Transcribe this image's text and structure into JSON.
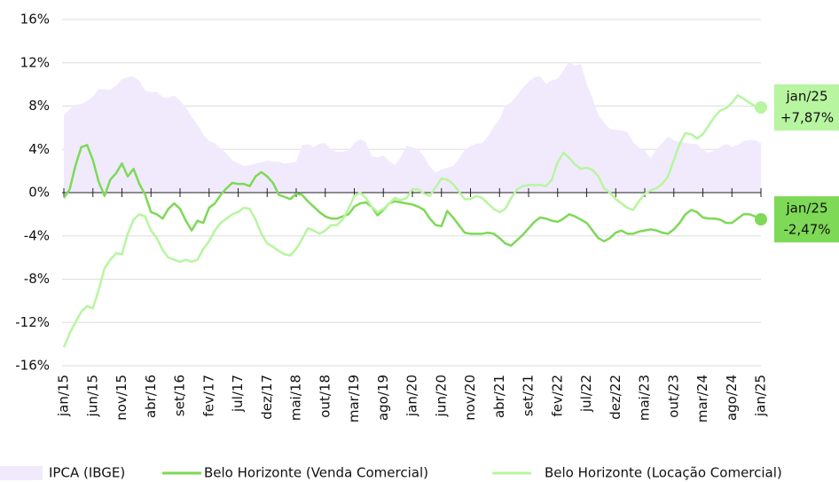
{
  "chart_data": {
    "type": "line",
    "categories": [
      "jan/15",
      null,
      null,
      null,
      null,
      "jun/15",
      null,
      null,
      null,
      null,
      "nov/15",
      null,
      null,
      null,
      null,
      "abr/16",
      null,
      null,
      null,
      null,
      "set/16",
      null,
      null,
      null,
      null,
      "fev/17",
      null,
      null,
      null,
      null,
      "jul/17",
      null,
      null,
      null,
      null,
      "dez/17",
      null,
      null,
      null,
      null,
      "mai/18",
      null,
      null,
      null,
      null,
      "out/18",
      null,
      null,
      null,
      null,
      "mar/19",
      null,
      null,
      null,
      null,
      "ago/19",
      null,
      null,
      null,
      null,
      "jan/20",
      null,
      null,
      null,
      null,
      "jun/20",
      null,
      null,
      null,
      null,
      "nov/20",
      null,
      null,
      null,
      null,
      "abr/21",
      null,
      null,
      null,
      null,
      "set/21",
      null,
      null,
      null,
      null,
      "fev/22",
      null,
      null,
      null,
      null,
      "jul/22",
      null,
      null,
      null,
      null,
      "dez/22",
      null,
      null,
      null,
      null,
      "mai/23",
      null,
      null,
      null,
      null,
      "out/23",
      null,
      null,
      null,
      null,
      "mar/24",
      null,
      null,
      null,
      null,
      "ago/24",
      null,
      null,
      null,
      null,
      "jan/25"
    ],
    "series": [
      {
        "name": "IPCA (IBGE)",
        "kind": "area",
        "color": "#f0eafc",
        "values": [
          7.14,
          7.7,
          8.13,
          8.17,
          8.47,
          8.89,
          9.56,
          9.53,
          9.49,
          9.93,
          10.48,
          10.67,
          10.71,
          10.36,
          9.39,
          9.28,
          9.32,
          8.84,
          8.74,
          8.97,
          8.48,
          7.87,
          6.99,
          6.29,
          5.35,
          4.76,
          4.57,
          4.08,
          3.6,
          3.0,
          2.71,
          2.46,
          2.54,
          2.7,
          2.8,
          2.95,
          2.86,
          2.84,
          2.68,
          2.76,
          2.86,
          4.39,
          4.48,
          4.19,
          4.53,
          4.56,
          4.05,
          3.75,
          3.78,
          3.89,
          4.58,
          4.94,
          4.66,
          3.37,
          3.22,
          3.43,
          2.89,
          2.54,
          3.27,
          4.31,
          4.19,
          4.01,
          3.3,
          2.4,
          1.88,
          2.13,
          2.31,
          2.44,
          3.14,
          3.92,
          4.31,
          4.52,
          4.56,
          5.2,
          6.1,
          6.76,
          8.06,
          8.35,
          8.99,
          9.68,
          10.25,
          10.67,
          10.74,
          10.06,
          10.38,
          10.54,
          11.3,
          12.13,
          11.73,
          11.89,
          10.07,
          8.73,
          7.17,
          6.47,
          5.9,
          5.79,
          5.77,
          5.6,
          4.65,
          4.18,
          3.94,
          3.16,
          3.99,
          4.61,
          5.19,
          4.82,
          4.68,
          4.62,
          4.51,
          4.5,
          3.93,
          3.69,
          3.93,
          4.23,
          4.5,
          4.24,
          4.42,
          4.76,
          4.87,
          4.83,
          4.56
        ]
      },
      {
        "name": "Belo Horizonte (Venda Comercial)",
        "kind": "line",
        "color": "#7ed957",
        "last_label": "-2,47%",
        "values": [
          -0.5,
          0.3,
          2.5,
          4.2,
          4.4,
          3.0,
          1.0,
          -0.3,
          1.2,
          1.8,
          2.7,
          1.5,
          2.2,
          0.8,
          -0.2,
          -1.8,
          -2.0,
          -2.4,
          -1.5,
          -1.0,
          -1.5,
          -2.6,
          -3.5,
          -2.6,
          -2.8,
          -1.4,
          -1.0,
          -0.2,
          0.4,
          0.9,
          0.8,
          0.8,
          0.6,
          1.5,
          1.9,
          1.5,
          0.9,
          -0.2,
          -0.4,
          -0.6,
          -0.1,
          -0.2,
          -0.8,
          -1.3,
          -1.8,
          -2.2,
          -2.4,
          -2.4,
          -2.2,
          -2.0,
          -1.3,
          -1.0,
          -0.9,
          -1.3,
          -2.1,
          -1.6,
          -1.0,
          -0.8,
          -0.9,
          -1.0,
          -1.1,
          -1.3,
          -1.6,
          -2.4,
          -3.0,
          -3.1,
          -1.7,
          -2.3,
          -3.0,
          -3.7,
          -3.8,
          -3.8,
          -3.8,
          -3.7,
          -3.8,
          -4.2,
          -4.7,
          -4.9,
          -4.4,
          -3.9,
          -3.3,
          -2.7,
          -2.3,
          -2.4,
          -2.6,
          -2.7,
          -2.4,
          -2.0,
          -2.2,
          -2.5,
          -2.8,
          -3.5,
          -4.2,
          -4.5,
          -4.2,
          -3.7,
          -3.5,
          -3.8,
          -3.8,
          -3.6,
          -3.5,
          -3.4,
          -3.5,
          -3.7,
          -3.8,
          -3.4,
          -2.8,
          -2.0,
          -1.6,
          -1.8,
          -2.3,
          -2.4,
          -2.4,
          -2.5,
          -2.8,
          -2.8,
          -2.4,
          -2.0,
          -2.0,
          -2.2,
          -2.47
        ]
      },
      {
        "name": "Belo Horizonte (Locação Comercial)",
        "kind": "line",
        "color": "#b8f5a0",
        "last_label": "+7,87%",
        "values": [
          -14.3,
          -13.0,
          -12.0,
          -11.0,
          -10.5,
          -10.7,
          -9.0,
          -7.0,
          -6.2,
          -5.6,
          -5.7,
          -3.8,
          -2.5,
          -2.0,
          -2.2,
          -3.5,
          -4.2,
          -5.3,
          -6.0,
          -6.2,
          -6.4,
          -6.2,
          -6.4,
          -6.2,
          -5.2,
          -4.5,
          -3.5,
          -2.8,
          -2.4,
          -2.0,
          -1.8,
          -1.4,
          -1.5,
          -2.5,
          -3.8,
          -4.7,
          -5.0,
          -5.4,
          -5.7,
          -5.8,
          -5.2,
          -4.3,
          -3.3,
          -3.5,
          -3.8,
          -3.5,
          -3.0,
          -3.0,
          -2.5,
          -1.5,
          -0.3,
          0.0,
          -0.5,
          -1.3,
          -1.8,
          -1.5,
          -1.0,
          -0.5,
          -0.7,
          -0.5,
          0.3,
          0.3,
          -0.1,
          -0.3,
          0.5,
          1.3,
          1.2,
          0.8,
          0.1,
          -0.6,
          -0.6,
          -0.3,
          -0.5,
          -1.0,
          -1.5,
          -1.8,
          -1.5,
          -0.5,
          0.3,
          0.6,
          0.7,
          0.7,
          0.7,
          0.6,
          1.2,
          2.8,
          3.7,
          3.2,
          2.6,
          2.2,
          2.3,
          2.1,
          1.5,
          0.4,
          0.0,
          -0.6,
          -1.0,
          -1.4,
          -1.6,
          -0.8,
          -0.1,
          0.2,
          0.4,
          0.8,
          1.5,
          3.0,
          4.5,
          5.5,
          5.4,
          5.0,
          5.4,
          6.2,
          7.0,
          7.6,
          7.8,
          8.3,
          9.0,
          8.7,
          8.3,
          8.0,
          7.87
        ]
      }
    ],
    "ylim": [
      -16,
      16
    ],
    "yticks": [
      {
        "value": -16,
        "label": "-16%"
      },
      {
        "value": -12,
        "label": "-12%"
      },
      {
        "value": -8,
        "label": "-8%"
      },
      {
        "value": -4,
        "label": "-4%"
      },
      {
        "value": 0,
        "label": "0%"
      },
      {
        "value": 4,
        "label": "4%"
      },
      {
        "value": 8,
        "label": "8%"
      },
      {
        "value": 12,
        "label": "12%"
      },
      {
        "value": 16,
        "label": "16%"
      }
    ],
    "grid": true
  }
}
